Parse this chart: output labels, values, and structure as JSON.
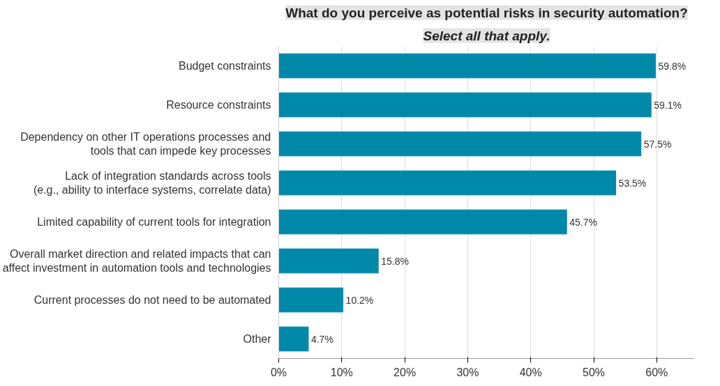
{
  "chart_data": {
    "type": "bar",
    "orientation": "horizontal",
    "title": "What do you perceive as potential risks in security automation?",
    "subtitle": "Select all that apply.",
    "categories": [
      "Budget constraints",
      "Resource constraints",
      "Dependency on other IT operations processes and\ntools that can impede key processes",
      "Lack of integration standards across tools\n(e.g., ability to interface systems, correlate data)",
      "Limited capability of current tools for integration",
      "Overall market direction and related impacts that can\naffect investment in automation tools and technologies",
      "Current processes do not need to be automated",
      "Other"
    ],
    "values": [
      59.8,
      59.1,
      57.5,
      53.5,
      45.7,
      15.8,
      10.2,
      4.7
    ],
    "value_labels": [
      "59.8%",
      "59.1%",
      "57.5%",
      "53.5%",
      "45.7%",
      "15.8%",
      "10.2%",
      "4.7%"
    ],
    "color": "#0088a8",
    "xlim": [
      0,
      66
    ],
    "xticks": [
      {
        "value": 0,
        "label": "0%"
      },
      {
        "value": 10,
        "label": "10%"
      },
      {
        "value": 20,
        "label": "20%"
      },
      {
        "value": 30,
        "label": "30%"
      },
      {
        "value": 40,
        "label": "40%"
      },
      {
        "value": 50,
        "label": "50%"
      },
      {
        "value": 60,
        "label": "60%"
      }
    ],
    "grid": "x"
  }
}
